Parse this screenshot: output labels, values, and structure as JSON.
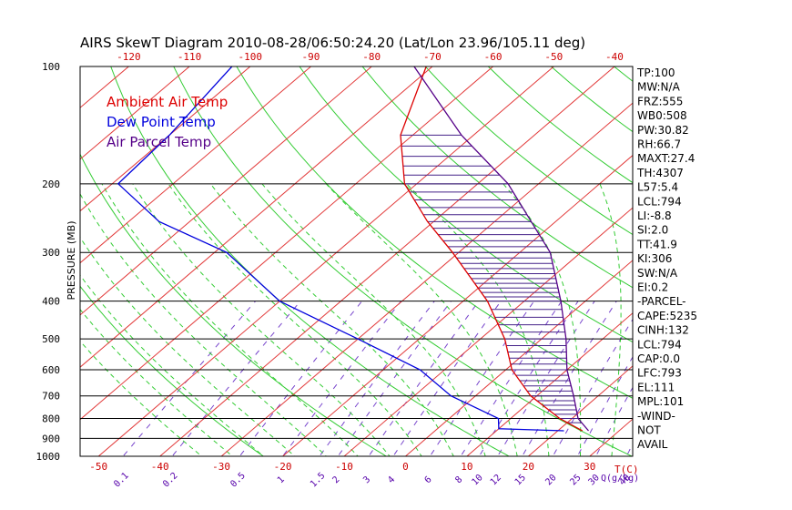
{
  "chart_data": {
    "type": "line",
    "title": "AIRS SkewT Diagram  2010-08-28/06:50:24.20 (Lat/Lon 23.96/105.11 deg)",
    "ylabel": "PRESSURE (MB)",
    "xlabel": "T(C)",
    "mixing_ratio_unit": "Q(g/kg)",
    "y_scale": "log",
    "ylim": [
      1000,
      100
    ],
    "xlim_bottom": [
      -53,
      37
    ],
    "xlim_top": [
      -128,
      -37
    ],
    "pressure_ticks": [
      100,
      200,
      300,
      400,
      500,
      600,
      700,
      800,
      900,
      1000
    ],
    "pressure_tick_labels": [
      "100",
      "200",
      "300",
      "400",
      "500",
      "600",
      "700",
      "800",
      "900",
      "1000"
    ],
    "bottom_temp_ticks": [
      -50,
      -40,
      -30,
      -20,
      -10,
      0,
      10,
      20,
      30
    ],
    "bottom_temp_tick_labels": [
      "-50",
      "-40",
      "-30",
      "-20",
      "-10",
      "0",
      "10",
      "20",
      "30"
    ],
    "top_temp_ticks": [
      -120,
      -110,
      -100,
      -90,
      -80,
      -70,
      -60,
      -50,
      -40
    ],
    "top_temp_tick_labels": [
      "-120",
      "-110",
      "-100",
      "-90",
      "-80",
      "-70",
      "-60",
      "-50",
      "-40"
    ],
    "mixing_ratio_labels": [
      "0.1",
      "0.2",
      "0.5",
      "1",
      "1.5",
      "2",
      "3",
      "4",
      "6",
      "8",
      "10",
      "12",
      "15",
      "20",
      "25",
      "30",
      "40"
    ],
    "mixing_ratio_label_temps": [
      -46,
      -38,
      -27,
      -20,
      -14,
      -11,
      -6,
      -2,
      4,
      9,
      12,
      15,
      19,
      24,
      28,
      31,
      36
    ],
    "isotherms_c": [
      -120,
      -110,
      -100,
      -90,
      -80,
      -70,
      -60,
      -50,
      -40,
      -30,
      -20,
      -10,
      0,
      10,
      20,
      30,
      40
    ],
    "dry_adiabats_theta_k": [
      250,
      270,
      290,
      310,
      330,
      350,
      370,
      390,
      410,
      430,
      450,
      470,
      490,
      510
    ],
    "moist_adiabats_c": [
      -30,
      -25,
      -20,
      -15,
      -10,
      -5,
      0,
      5,
      10,
      15,
      20,
      25,
      30,
      35
    ],
    "hatch_pressures": [
      150,
      160,
      170,
      180,
      190,
      200,
      210,
      220,
      230,
      240,
      250,
      260,
      270,
      280,
      290,
      300,
      310,
      320,
      330,
      340,
      350,
      360,
      370,
      380,
      390,
      400,
      420,
      440,
      460,
      480,
      500,
      520,
      540,
      560,
      580,
      600,
      620,
      640,
      660,
      680,
      700,
      720,
      740,
      760,
      780,
      800,
      820
    ],
    "series": [
      {
        "name": "Ambient Air Temp",
        "color": "#dd0000",
        "pressure": [
          100,
          150,
          200,
          250,
          300,
          400,
          500,
          600,
          700,
          800,
          860
        ],
        "temperature": [
          -71,
          -62,
          -52,
          -41,
          -31,
          -16,
          -6,
          1,
          9,
          18,
          24
        ]
      },
      {
        "name": "Dew Point Temp",
        "color": "#0000dd",
        "pressure": [
          100,
          150,
          200,
          250,
          300,
          400,
          500,
          600,
          700,
          800,
          850,
          860
        ],
        "temperature": [
          -103,
          -100,
          -99,
          -85,
          -68,
          -50,
          -30,
          -14,
          -4,
          8,
          10,
          21
        ]
      },
      {
        "name": "Air Parcel Temp",
        "color": "#550088",
        "pressure": [
          100,
          150,
          200,
          250,
          300,
          400,
          500,
          600,
          700,
          800,
          860
        ],
        "temperature": [
          -73,
          -52,
          -35,
          -24,
          -15,
          -4,
          4,
          10,
          16,
          21,
          25
        ]
      }
    ],
    "indices": [
      "TP:100",
      "MW:N/A",
      "FRZ:555",
      "WB0:508",
      "PW:30.82",
      "RH:66.7",
      "MAXT:27.4",
      "TH:4307",
      "L57:5.4",
      "LCL:794",
      "LI:-8.8",
      "SI:2.0",
      "TT:41.9",
      "KI:306",
      "SW:N/A",
      "EI:0.2",
      "-PARCEL-",
      "CAPE:5235",
      "CINH:132",
      "LCL:794",
      "CAP:0.0",
      "LFC:793",
      "EL:111",
      "MPL:101",
      "-WIND-",
      "NOT",
      "AVAIL"
    ]
  }
}
